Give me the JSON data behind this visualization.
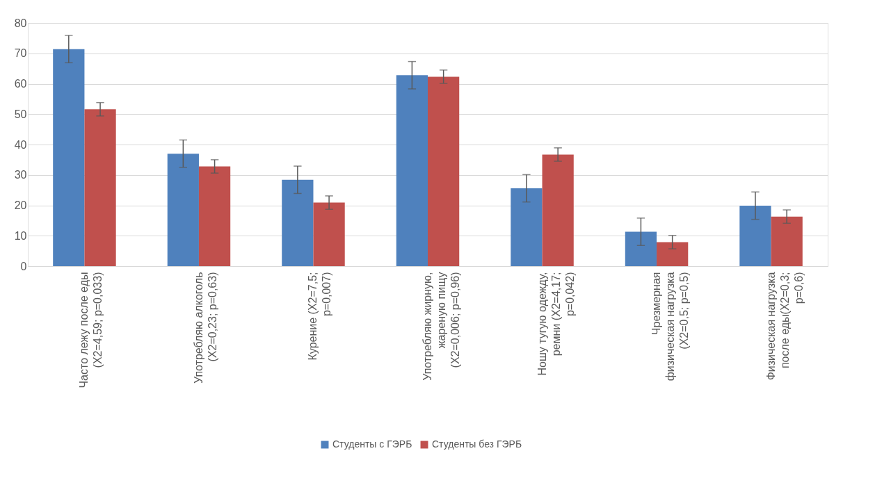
{
  "chart_data": {
    "type": "bar",
    "categories": [
      "Часто лежу после еды (X2=4,59; p=0,033)",
      "Употребляю алкоголь (X2=0,23; p=0,63)",
      "Курение (X2=7,5; p=0,007)",
      "Употребляю жирную, жареную пищу (X2=0,006; p=0,96)",
      "Ношу тугую одежду, ремни (X2=4,17; p=0,042)",
      "Чрезмерная физическая нагрузка (X2=0,5; p=0,5)",
      "Физическая нагрузка после еды(X2=0,3; p=0,6)"
    ],
    "series": [
      {
        "name": "Студенты с ГЭРБ",
        "color": "#4f81bd",
        "values": [
          71.4,
          37.0,
          28.4,
          62.8,
          25.6,
          11.3,
          19.9
        ],
        "errors": [
          4.5,
          4.5,
          4.5,
          4.5,
          4.5,
          4.5,
          4.5
        ]
      },
      {
        "name": "Студенты без ГЭРБ",
        "color": "#c0504d",
        "values": [
          51.6,
          32.8,
          20.9,
          62.3,
          36.7,
          7.9,
          16.3
        ],
        "errors": [
          2.2,
          2.2,
          2.2,
          2.2,
          2.2,
          2.2,
          2.2
        ]
      }
    ],
    "ylim": [
      0,
      80
    ],
    "yticks": [
      0,
      10,
      20,
      30,
      40,
      50,
      60,
      70,
      80
    ],
    "grid": "y",
    "legend": "bottom"
  }
}
